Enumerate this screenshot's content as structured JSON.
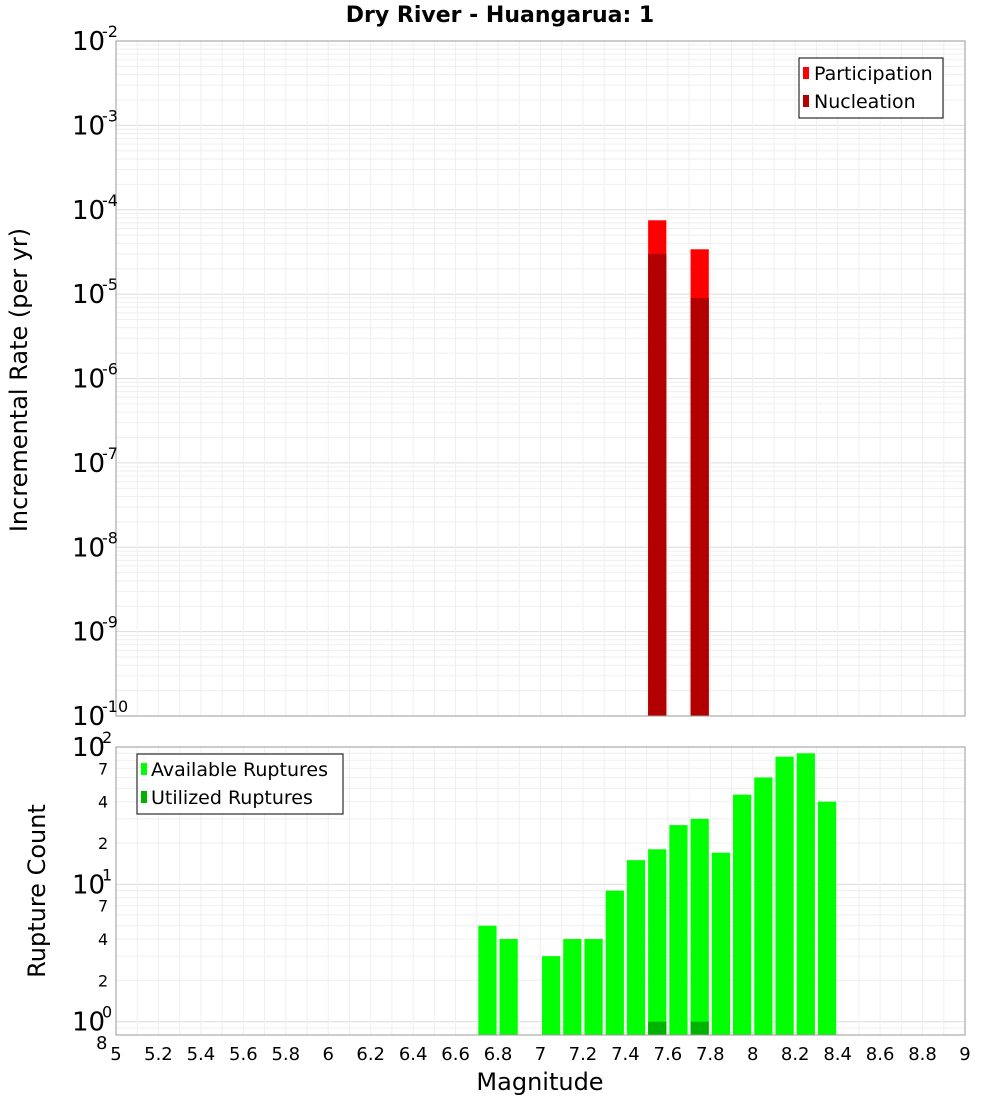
{
  "chart_data": [
    {
      "type": "bar",
      "title": "Dry River - Huangarua: 1",
      "ylabel": "Incremental Rate (per yr)",
      "xlabel": "",
      "yscale": "log",
      "ylim": [
        1e-10,
        0.01
      ],
      "xlim": [
        5,
        9
      ],
      "bin_width": 0.1,
      "y_ticks": [
        {
          "base": "10",
          "exp": "-10",
          "value": 1e-10
        },
        {
          "base": "10",
          "exp": "-9",
          "value": 1e-09
        },
        {
          "base": "10",
          "exp": "-8",
          "value": 1e-08
        },
        {
          "base": "10",
          "exp": "-7",
          "value": 1e-07
        },
        {
          "base": "10",
          "exp": "-6",
          "value": 1e-06
        },
        {
          "base": "10",
          "exp": "-5",
          "value": 1e-05
        },
        {
          "base": "10",
          "exp": "-4",
          "value": 0.0001
        },
        {
          "base": "10",
          "exp": "-3",
          "value": 0.001
        },
        {
          "base": "10",
          "exp": "-2",
          "value": 0.01
        }
      ],
      "legend": [
        {
          "label": "Participation",
          "color": "#ff0000"
        },
        {
          "label": "Nucleation",
          "color": "#b20000"
        }
      ],
      "series": [
        {
          "name": "Participation",
          "color": "#ff0000",
          "x": [
            7.55,
            7.75
          ],
          "values": [
            7.5e-05,
            3.4e-05
          ]
        },
        {
          "name": "Nucleation",
          "color": "#b20000",
          "x": [
            7.55,
            7.75
          ],
          "values": [
            3e-05,
            9e-06
          ]
        }
      ]
    },
    {
      "type": "bar",
      "ylabel": "Rupture Count",
      "xlabel": "Magnitude",
      "yscale": "log",
      "ylim": [
        0.8,
        100
      ],
      "xlim": [
        5,
        9
      ],
      "bin_width": 0.1,
      "x_ticks": [
        "5",
        "5.2",
        "5.4",
        "5.6",
        "5.8",
        "6",
        "6.2",
        "6.4",
        "6.6",
        "6.8",
        "7",
        "7.2",
        "7.4",
        "7.6",
        "7.8",
        "8",
        "8.2",
        "8.4",
        "8.6",
        "8.8",
        "9"
      ],
      "y_major_ticks": [
        {
          "base": "10",
          "exp": "0",
          "value": 1
        },
        {
          "base": "10",
          "exp": "1",
          "value": 10
        },
        {
          "base": "10",
          "exp": "2",
          "value": 100
        }
      ],
      "y_minor_labels": [
        {
          "label": "8",
          "value": 0.8
        },
        {
          "label": "2",
          "value": 2
        },
        {
          "label": "4",
          "value": 4
        },
        {
          "label": "7",
          "value": 7
        },
        {
          "label": "2",
          "value": 20
        },
        {
          "label": "4",
          "value": 40
        },
        {
          "label": "7",
          "value": 70
        }
      ],
      "legend": [
        {
          "label": "Available Ruptures",
          "color": "#00ff00"
        },
        {
          "label": "Utilized Ruptures",
          "color": "#00b200"
        }
      ],
      "series": [
        {
          "name": "Available Ruptures",
          "color": "#00ff00",
          "x": [
            6.75,
            6.85,
            7.05,
            7.15,
            7.25,
            7.35,
            7.45,
            7.55,
            7.65,
            7.75,
            7.85,
            7.95,
            8.05,
            8.15,
            8.25,
            8.35
          ],
          "values": [
            5,
            4,
            3,
            4,
            4,
            9,
            15,
            18,
            27,
            30,
            17,
            45,
            60,
            85,
            90,
            40
          ]
        },
        {
          "name": "Utilized Ruptures",
          "color": "#00b200",
          "x": [
            7.55,
            7.75
          ],
          "values": [
            1,
            1
          ]
        }
      ]
    }
  ]
}
